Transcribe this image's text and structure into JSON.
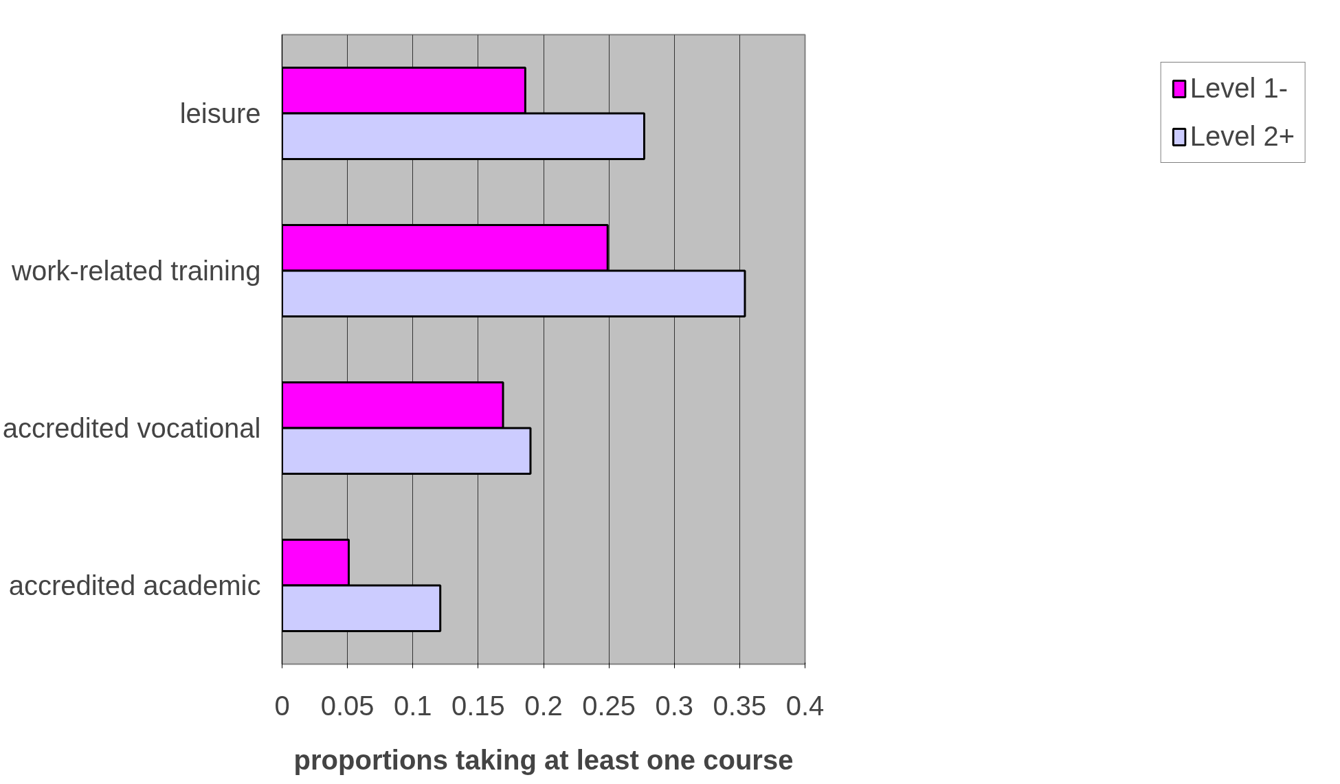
{
  "chart_data": {
    "type": "bar",
    "orientation": "horizontal",
    "xlabel": "proportions taking at least one course",
    "categories": [
      "leisure",
      "work-related training",
      "accredited vocational",
      "accredited academic"
    ],
    "series": [
      {
        "name": "Level 1-",
        "color": "#ff00ff",
        "values": [
          0.186,
          0.249,
          0.169,
          0.051
        ]
      },
      {
        "name": "Level 2+",
        "color": "#ccccff",
        "values": [
          0.277,
          0.354,
          0.19,
          0.121
        ]
      }
    ],
    "xlim": [
      0,
      0.4
    ],
    "xticks": [
      0,
      0.05,
      0.1,
      0.15,
      0.2,
      0.25,
      0.3,
      0.35,
      0.4
    ],
    "grid": "x",
    "legend": "right"
  }
}
